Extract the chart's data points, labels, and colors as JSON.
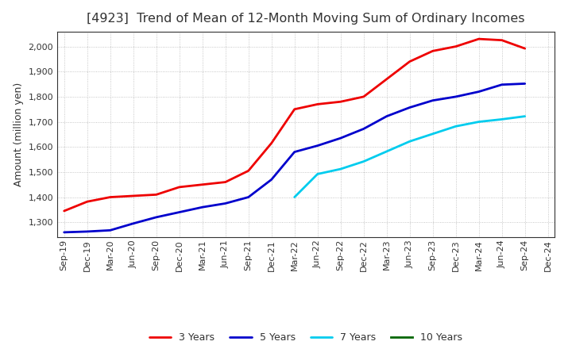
{
  "title": "[4923]  Trend of Mean of 12-Month Moving Sum of Ordinary Incomes",
  "ylabel": "Amount (million yen)",
  "background_color": "#ffffff",
  "plot_bg_color": "#ffffff",
  "grid_color": "#999999",
  "title_color": "#333333",
  "x_labels": [
    "Sep-19",
    "Dec-19",
    "Mar-20",
    "Jun-20",
    "Sep-20",
    "Dec-20",
    "Mar-21",
    "Jun-21",
    "Sep-21",
    "Dec-21",
    "Mar-22",
    "Jun-22",
    "Sep-22",
    "Dec-22",
    "Mar-23",
    "Jun-23",
    "Sep-23",
    "Dec-23",
    "Mar-24",
    "Jun-24",
    "Sep-24",
    "Dec-24"
  ],
  "series": {
    "3 Years": {
      "color": "#ee0000",
      "data_x": [
        0,
        1,
        2,
        3,
        4,
        5,
        6,
        7,
        8,
        9,
        10,
        11,
        12,
        13,
        14,
        15,
        16,
        17,
        18,
        19,
        20
      ],
      "data_y": [
        1345,
        1382,
        1400,
        1405,
        1410,
        1440,
        1450,
        1460,
        1505,
        1615,
        1750,
        1770,
        1780,
        1800,
        1870,
        1940,
        1982,
        2000,
        2030,
        2025,
        1992
      ]
    },
    "5 Years": {
      "color": "#0000cc",
      "data_x": [
        0,
        1,
        2,
        3,
        4,
        5,
        6,
        7,
        8,
        9,
        10,
        11,
        12,
        13,
        14,
        15,
        16,
        17,
        18,
        19,
        20
      ],
      "data_y": [
        1260,
        1263,
        1268,
        1295,
        1320,
        1340,
        1360,
        1375,
        1400,
        1470,
        1580,
        1605,
        1635,
        1672,
        1722,
        1757,
        1785,
        1800,
        1820,
        1848,
        1852
      ]
    },
    "7 Years": {
      "color": "#00ccee",
      "data_x": [
        10,
        11,
        12,
        13,
        14,
        15,
        16,
        17,
        18,
        19,
        20
      ],
      "data_y": [
        1400,
        1492,
        1512,
        1542,
        1582,
        1622,
        1652,
        1682,
        1700,
        1710,
        1722
      ]
    },
    "10 Years": {
      "color": "#006600",
      "data_x": [],
      "data_y": []
    }
  },
  "ylim": [
    1240,
    2060
  ],
  "yticks": [
    1300,
    1400,
    1500,
    1600,
    1700,
    1800,
    1900,
    2000
  ],
  "title_fontsize": 11.5,
  "axis_label_fontsize": 9,
  "tick_fontsize": 8,
  "legend_fontsize": 9
}
